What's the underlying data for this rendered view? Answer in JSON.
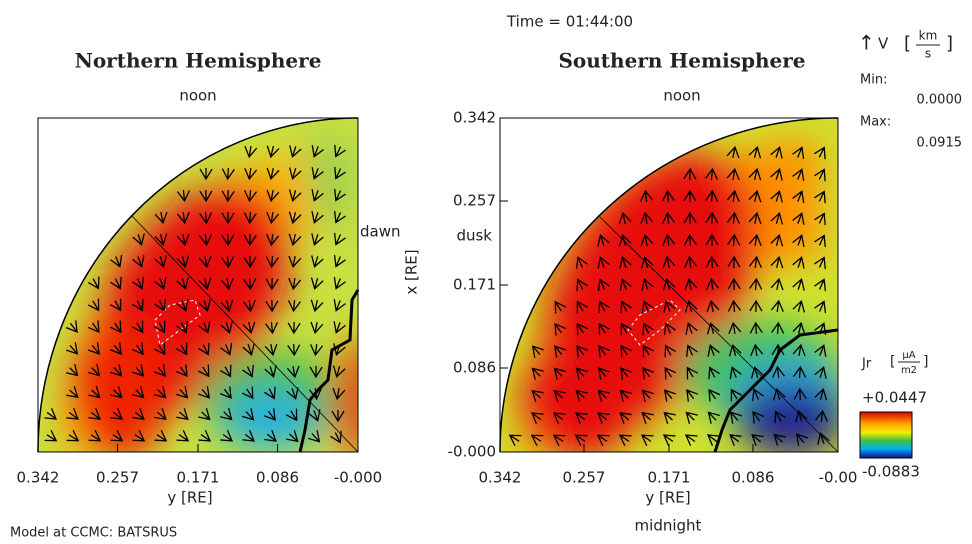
{
  "chart_data": [
    {
      "type": "field",
      "title": "Northern Hemisphere",
      "top_label": "noon",
      "side_label": "dawn",
      "xlabel": "y [RE]",
      "xlim": [
        0.342,
        0
      ],
      "xticks": [
        0.342,
        0.257,
        0.171,
        0.086,
        {
          "value": 0,
          "label": "-0.000"
        }
      ]
    },
    {
      "type": "field",
      "title": "Southern Hemisphere",
      "top_label": "noon",
      "side_label": "dusk",
      "bottom_label": "midnight",
      "xlabel": "y [RE]",
      "xlim": [
        0.342,
        0
      ],
      "xticks": [
        0.342,
        0.257,
        0.171,
        0.086,
        {
          "value": 0,
          "label": "-0.00"
        }
      ],
      "ylabel": "x [RE]",
      "ylim": [
        0,
        0.342
      ],
      "yticks": [
        {
          "value": 0,
          "label": "-0.000"
        },
        0.086,
        0.171,
        0.257,
        0.342
      ]
    }
  ],
  "time_label": "Time = 01:44:00",
  "model_label": "Model at CCMC: BATSRUS",
  "vector_legend": {
    "symbol": "V",
    "unit_top": "km",
    "unit_bottom": "s",
    "min_label": "Min:",
    "min": "0.0000",
    "max_label": "Max:",
    "max": "0.0915"
  },
  "colorbar": {
    "symbol": "Jr",
    "unit_top": "µA",
    "unit_bottom": "m2",
    "lim": [
      -0.0883,
      0.0447
    ],
    "ticks": [
      {
        "value": 0.0447,
        "label": "+0.0447"
      },
      {
        "value": -0.0883,
        "label": "-0.0883"
      }
    ]
  }
}
